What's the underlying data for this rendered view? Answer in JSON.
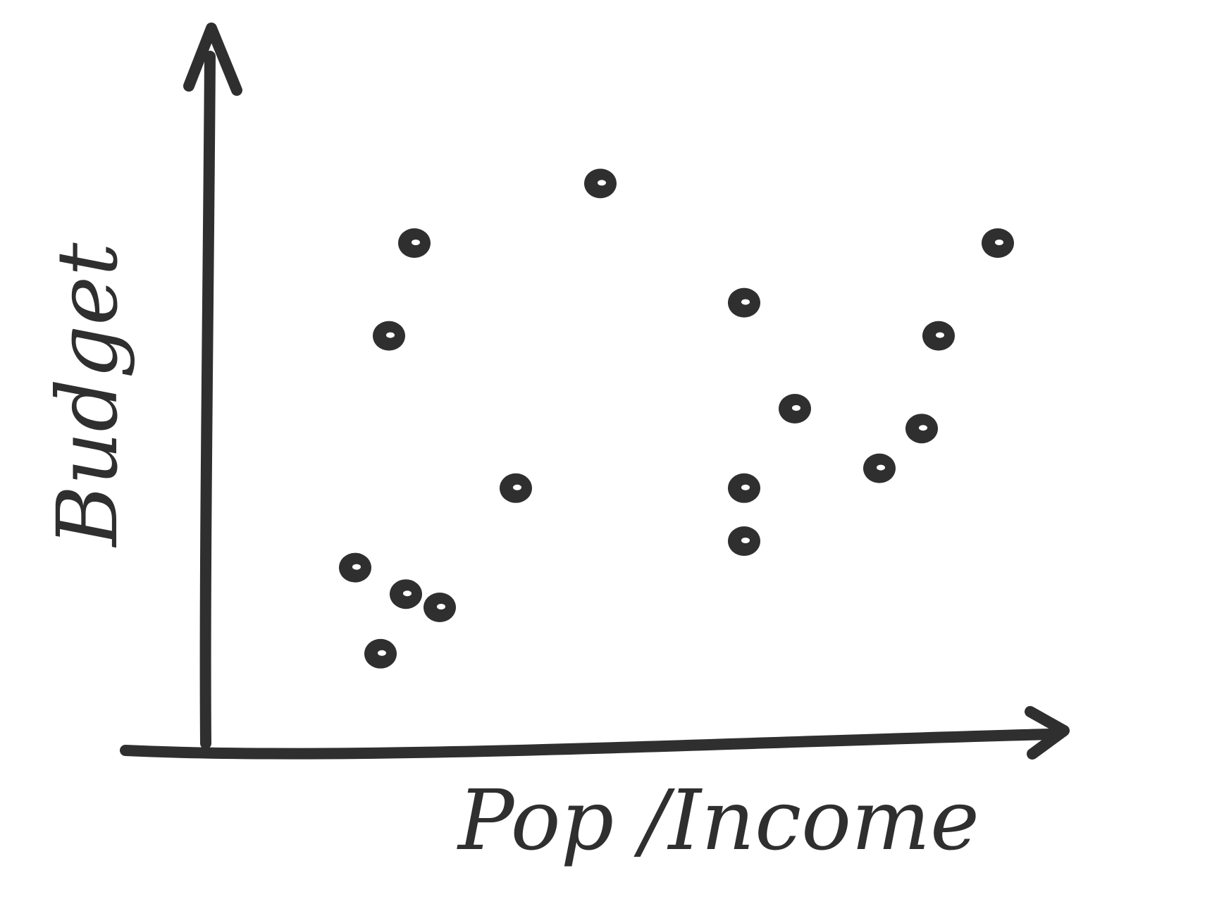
{
  "chart_data": {
    "type": "scatter",
    "title": "",
    "xlabel": "Pop /Income",
    "ylabel": "Budget",
    "xlim": [
      0,
      100
    ],
    "ylim": [
      0,
      100
    ],
    "grid": false,
    "legend": "none",
    "ink_color": "#2f2f2f",
    "points": [
      {
        "x": 46,
        "y": 84
      },
      {
        "x": 24,
        "y": 75
      },
      {
        "x": 21,
        "y": 61
      },
      {
        "x": 63,
        "y": 66
      },
      {
        "x": 93,
        "y": 75
      },
      {
        "x": 86,
        "y": 61
      },
      {
        "x": 69,
        "y": 50
      },
      {
        "x": 84,
        "y": 47
      },
      {
        "x": 36,
        "y": 38
      },
      {
        "x": 63,
        "y": 38
      },
      {
        "x": 79,
        "y": 41
      },
      {
        "x": 63,
        "y": 30
      },
      {
        "x": 17,
        "y": 26
      },
      {
        "x": 23,
        "y": 22
      },
      {
        "x": 27,
        "y": 20
      },
      {
        "x": 20,
        "y": 13
      }
    ]
  }
}
